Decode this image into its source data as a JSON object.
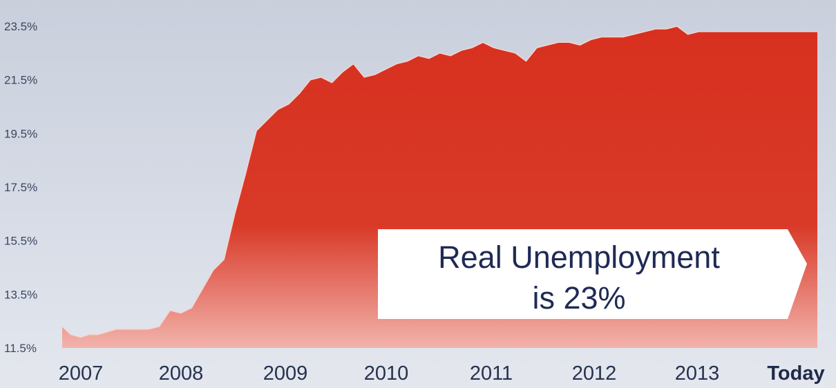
{
  "chart_data": {
    "type": "area",
    "title": "",
    "xlabel": "",
    "ylabel": "",
    "y_ticks": [
      "23.5%",
      "21.5%",
      "19.5%",
      "17.5%",
      "15.5%",
      "13.5%",
      "11.5%"
    ],
    "ylim": [
      11.5,
      23.5
    ],
    "x_ticks": [
      "2007",
      "2008",
      "2009",
      "2010",
      "2011",
      "2012",
      "2013",
      "Today"
    ],
    "grid": false,
    "colors": {
      "area_top": "#d8301f",
      "area_bottom": "#f2b3ac",
      "background": "#cfd4df"
    },
    "series": [
      {
        "x": [
          2007.0,
          2007.08,
          2007.17,
          2007.25,
          2007.33,
          2007.42,
          2007.5,
          2007.6,
          2007.7,
          2007.8,
          2007.9,
          2008.0,
          2008.1,
          2008.2,
          2008.3,
          2008.4,
          2008.5,
          2008.6,
          2008.7,
          2008.8,
          2008.9,
          2009.0,
          2009.1,
          2009.2,
          2009.3,
          2009.4,
          2009.5,
          2009.6,
          2009.7,
          2009.8,
          2009.9,
          2010.0,
          2010.1,
          2010.2,
          2010.3,
          2010.4,
          2010.5,
          2010.6,
          2010.7,
          2010.8,
          2010.9,
          2011.0,
          2011.1,
          2011.2,
          2011.3,
          2011.4,
          2011.5,
          2011.6,
          2011.7,
          2011.8,
          2011.9,
          2012.0,
          2012.1,
          2012.2,
          2012.3,
          2012.4,
          2012.5,
          2012.6,
          2012.7,
          2012.8,
          2012.9,
          2013.0,
          2013.1,
          2013.2,
          2013.3,
          2013.4,
          2013.5,
          2013.6,
          2013.7,
          2013.8,
          2013.9,
          2014.0
        ],
        "values": [
          12.3,
          12.0,
          11.9,
          12.0,
          12.0,
          12.1,
          12.2,
          12.2,
          12.2,
          12.2,
          12.3,
          12.9,
          12.8,
          13.0,
          13.7,
          14.4,
          14.8,
          16.5,
          18.0,
          19.6,
          20.0,
          20.4,
          20.6,
          21.0,
          21.5,
          21.6,
          21.4,
          21.8,
          22.1,
          21.6,
          21.7,
          21.9,
          22.1,
          22.2,
          22.4,
          22.3,
          22.5,
          22.4,
          22.6,
          22.7,
          22.9,
          22.7,
          22.6,
          22.5,
          22.2,
          22.7,
          22.8,
          22.9,
          22.9,
          22.8,
          23.0,
          23.1,
          23.1,
          23.1,
          23.2,
          23.3,
          23.4,
          23.4,
          23.5,
          23.2,
          23.3,
          23.3,
          23.3,
          23.3,
          23.3,
          23.3,
          23.3,
          23.3,
          23.3,
          23.3,
          23.3,
          23.3
        ]
      }
    ],
    "annotation": {
      "lines": [
        "Real Unemployment",
        "is 23%"
      ]
    }
  }
}
